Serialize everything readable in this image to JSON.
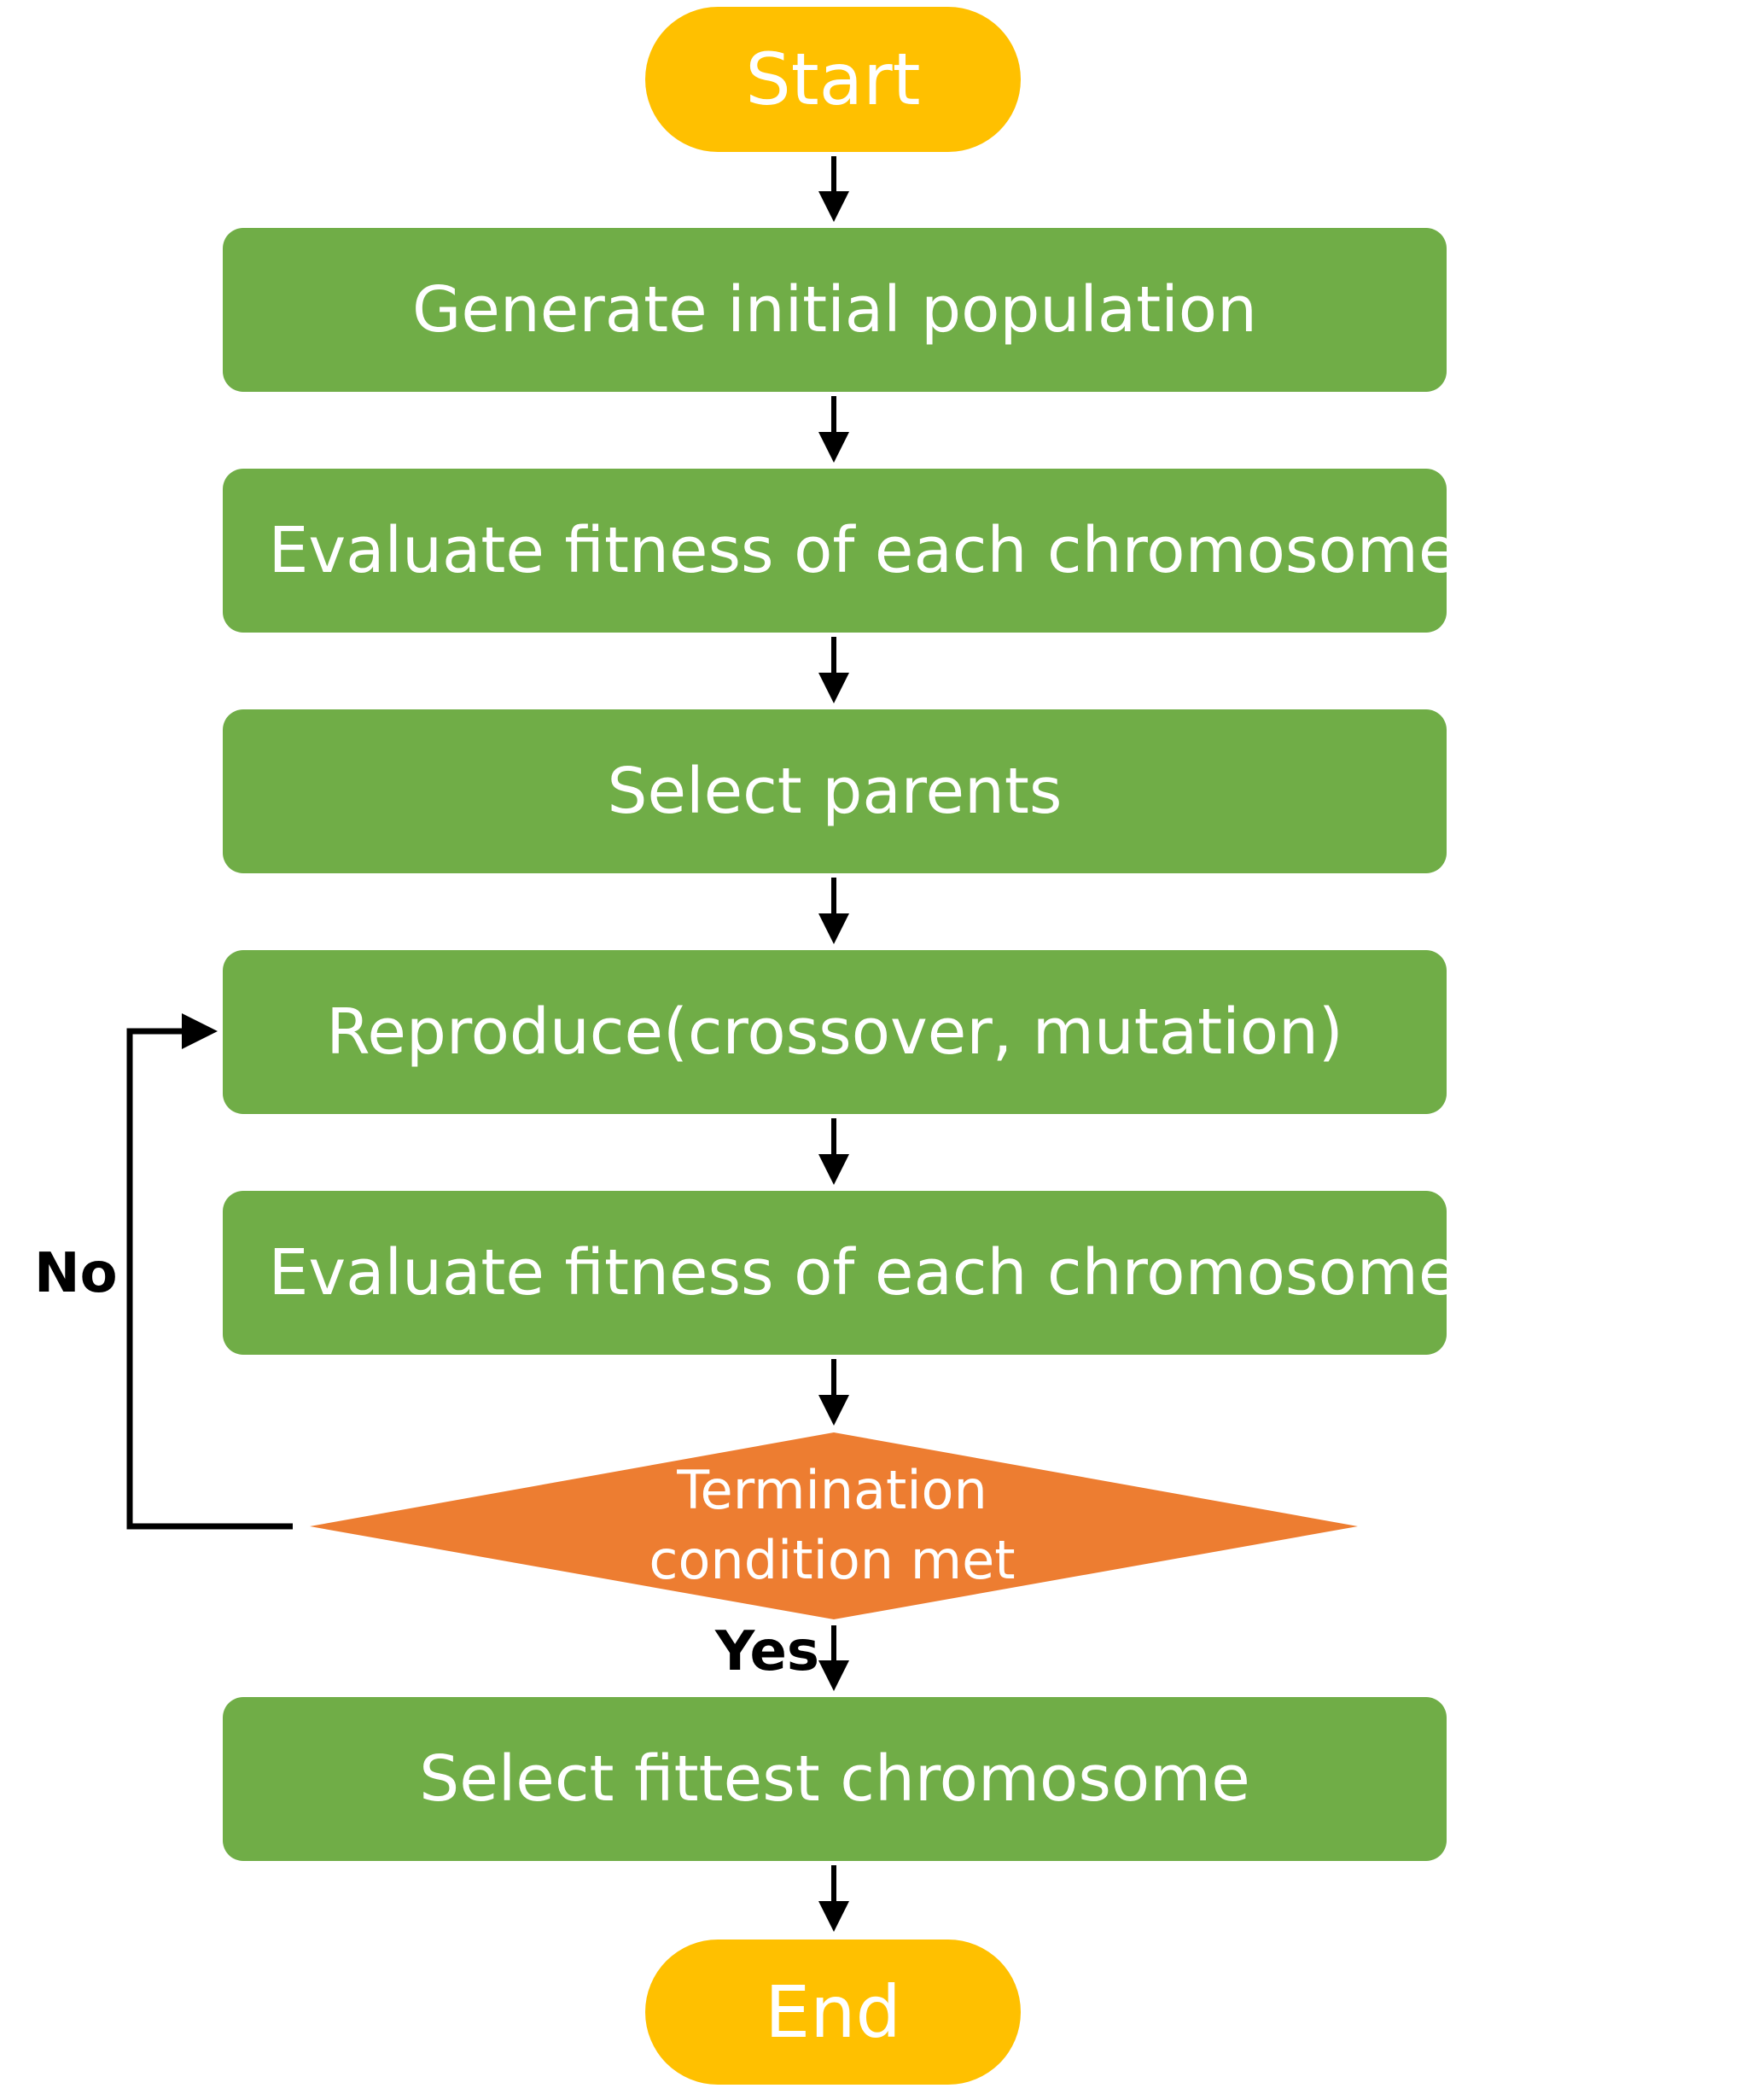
{
  "flowchart": {
    "start": "Start",
    "steps": [
      "Generate initial population",
      "Evaluate fitness of each chromosome",
      "Select parents",
      "Reproduce(crossover, mutation)",
      "Evaluate fitness of each chromosome"
    ],
    "decision": {
      "line1": "Termination",
      "line2": "condition met"
    },
    "branch_no": "No",
    "branch_yes": "Yes",
    "final_step": "Select fittest chromosome",
    "end": "End"
  },
  "colors": {
    "terminal": "#ffc000",
    "process": "#70ad47",
    "decision": "#ed7d31",
    "connector": "#000000"
  }
}
